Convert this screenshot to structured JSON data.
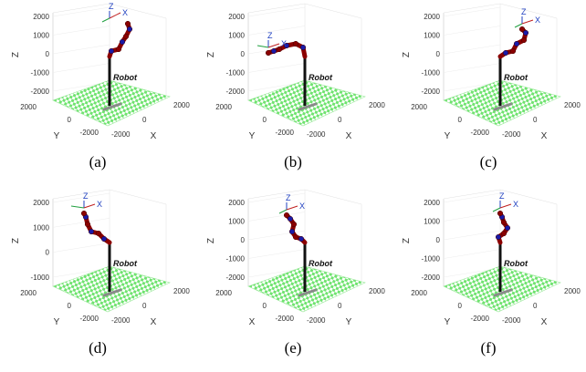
{
  "colors": {
    "floor": "#6fe36f",
    "link": "#8b0000",
    "joint": "#1a1aa8",
    "base": "#111111",
    "shadow": "#8a8a8a"
  },
  "axis_labels": {
    "z": "Z",
    "y": "Y",
    "x": "X"
  },
  "robot_label": "Robot",
  "frame_labels": {
    "z": "Z",
    "x": "X",
    "y": "Y"
  },
  "panels": [
    {
      "caption": "(a)",
      "z_ticks": [
        "2000",
        "1000",
        "0",
        "-1000",
        "-2000"
      ],
      "left_ticks": [
        "2000",
        "0",
        "-2000"
      ],
      "right_ticks": [
        "-2000",
        "0",
        "2000"
      ],
      "left_label": "Y",
      "right_label": "X",
      "pose": "a"
    },
    {
      "caption": "(b)",
      "z_ticks": [
        "2000",
        "1000",
        "0",
        "-1000",
        "-2000"
      ],
      "left_ticks": [
        "2000",
        "0",
        "-2000"
      ],
      "right_ticks": [
        "-2000",
        "0",
        "2000"
      ],
      "left_label": "Y",
      "right_label": "X",
      "pose": "b"
    },
    {
      "caption": "(c)",
      "z_ticks": [
        "2000",
        "1000",
        "0",
        "-1000",
        "-2000"
      ],
      "left_ticks": [
        "2000",
        "0",
        "-2000"
      ],
      "right_ticks": [
        "-2000",
        "0",
        "2000"
      ],
      "left_label": "Y",
      "right_label": "X",
      "pose": "c"
    },
    {
      "caption": "(d)",
      "z_ticks": [
        "2000",
        "1000",
        "0",
        "-1000"
      ],
      "left_ticks": [
        "2000",
        "0",
        "-2000"
      ],
      "right_ticks": [
        "-2000",
        "0",
        "2000"
      ],
      "left_label": "Y",
      "right_label": "X",
      "pose": "d"
    },
    {
      "caption": "(e)",
      "z_ticks": [
        "2000",
        "1000",
        "0",
        "-1000",
        "-2000"
      ],
      "left_ticks": [
        "2000",
        "0",
        "-2000"
      ],
      "right_ticks": [
        "-2000",
        "0",
        "2000"
      ],
      "left_label": "X",
      "right_label": "Y",
      "pose": "e"
    },
    {
      "caption": "(f)",
      "z_ticks": [
        "2000",
        "1000",
        "0",
        "-1000",
        "-2000"
      ],
      "left_ticks": [
        "2000",
        "0",
        "-2000"
      ],
      "right_ticks": [
        "-2000",
        "0",
        "2000"
      ],
      "left_label": "Y",
      "right_label": "X",
      "pose": "f"
    }
  ]
}
